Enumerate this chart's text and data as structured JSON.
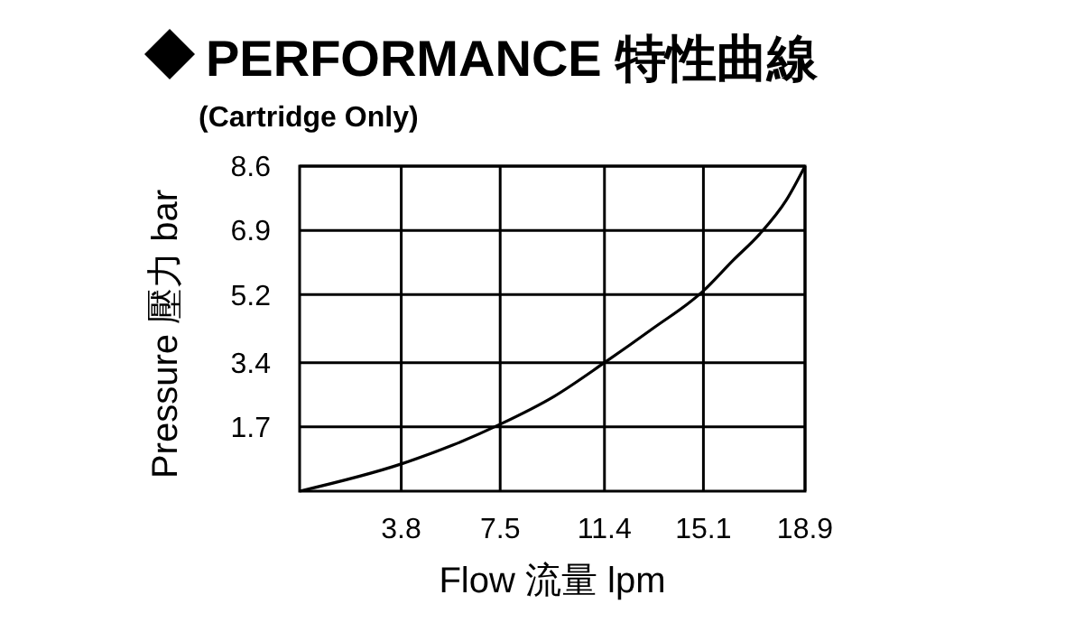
{
  "chart_data": {
    "type": "line",
    "title": "PERFORMANCE 特性曲線",
    "subtitle": "(Cartridge Only)",
    "xlabel": "Flow 流量 lpm",
    "ylabel": "Pressure 壓力 bar",
    "x": [
      0,
      3.8,
      5.7,
      7.5,
      9.5,
      11.4,
      13.2,
      15.1,
      16.2,
      17.2,
      18.2,
      18.9
    ],
    "series": [
      {
        "color": "#000000",
        "values": [
          0,
          0.72,
          1.21,
          1.77,
          2.5,
          3.4,
          4.3,
          5.3,
          6.1,
          6.8,
          7.7,
          8.6
        ]
      }
    ],
    "xlim": [
      0,
      18.9
    ],
    "xticks": [
      3.8,
      7.5,
      11.4,
      15.1,
      18.9
    ],
    "ylim": [
      0,
      8.6
    ],
    "yticks": [
      1.7,
      3.4,
      5.2,
      6.9,
      8.6
    ],
    "grid": true,
    "marker": "none",
    "line_style": "solid"
  }
}
